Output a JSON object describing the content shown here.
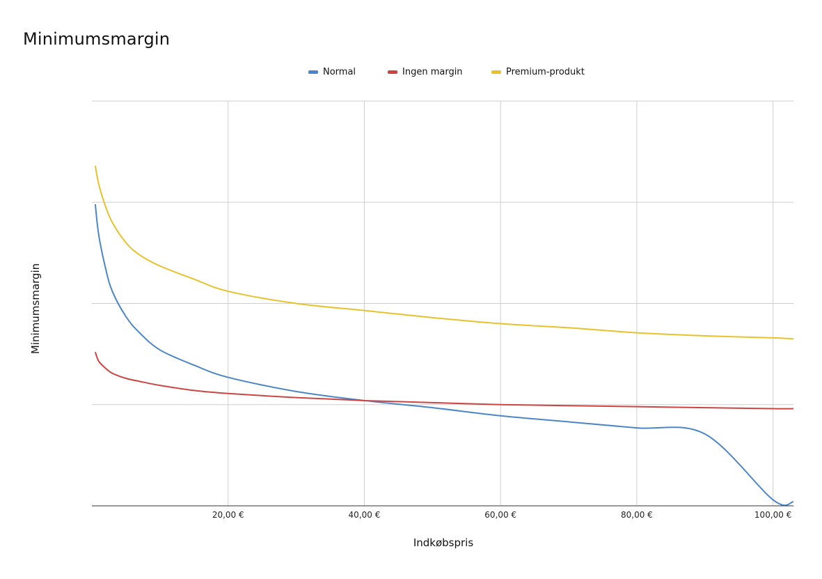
{
  "chart_data": {
    "type": "line",
    "title": "Minimumsmargin",
    "xlabel": "Indkøbspris",
    "ylabel": "Minimumsmargin",
    "x_ticks": [
      "20,00 €",
      "40,00 €",
      "60,00 €",
      "80,00 €",
      "100,00 €"
    ],
    "x_tick_values": [
      20,
      40,
      60,
      80,
      100
    ],
    "xlim": [
      0,
      103
    ],
    "ylim": [
      0,
      4
    ],
    "y_gridlines": [
      1,
      2,
      3,
      4
    ],
    "grid": true,
    "legend_position": "top-center",
    "x": [
      0.5,
      1,
      2,
      3,
      5,
      7,
      10,
      15,
      20,
      30,
      40,
      50,
      60,
      70,
      80,
      90,
      100,
      103
    ],
    "series": [
      {
        "name": "Normal",
        "color": "#4a86c8",
        "values": [
          2.98,
          2.68,
          2.35,
          2.12,
          1.87,
          1.71,
          1.54,
          1.39,
          1.27,
          1.13,
          1.04,
          0.97,
          0.89,
          0.83,
          0.77,
          0.71,
          0.06,
          0.04
        ]
      },
      {
        "name": "Ingen margin",
        "color": "#cc4542",
        "values": [
          1.52,
          1.43,
          1.36,
          1.31,
          1.26,
          1.23,
          1.19,
          1.14,
          1.11,
          1.07,
          1.04,
          1.02,
          1.0,
          0.99,
          0.98,
          0.97,
          0.96,
          0.96
        ]
      },
      {
        "name": "Premium-produkt",
        "color": "#e9c12a",
        "values": [
          3.36,
          3.18,
          2.96,
          2.8,
          2.6,
          2.48,
          2.37,
          2.24,
          2.12,
          2.0,
          1.93,
          1.86,
          1.8,
          1.76,
          1.71,
          1.68,
          1.66,
          1.65
        ]
      }
    ]
  }
}
